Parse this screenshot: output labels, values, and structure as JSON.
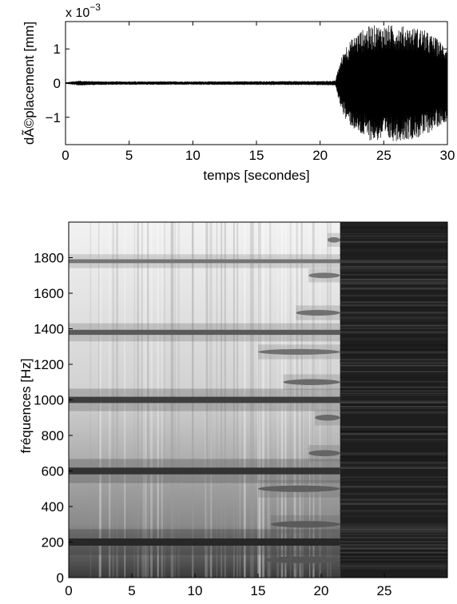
{
  "chart_data": [
    {
      "type": "line",
      "xlabel": "temps [secondes]",
      "ylabel": "dÃ©placement [mm]",
      "multiplier_base": "x 10",
      "multiplier_exponent": "−3",
      "xlim": [
        0,
        30
      ],
      "ylim": [
        -1.8,
        1.8
      ],
      "x_ticks": [
        0,
        5,
        10,
        15,
        20,
        25,
        30
      ],
      "x_tick_labels": [
        "0",
        "5",
        "10",
        "15",
        "20",
        "25",
        "30"
      ],
      "y_ticks": [
        -1,
        0,
        1
      ],
      "y_tick_labels": [
        "−1",
        "0",
        "1"
      ],
      "grid": false,
      "series": [
        {
          "envelope": [
            {
              "x": 0,
              "amp": 0.02
            },
            {
              "x": 1,
              "amp": 0.07
            },
            {
              "x": 3,
              "amp": 0.05
            },
            {
              "x": 10,
              "amp": 0.05
            },
            {
              "x": 20,
              "amp": 0.06
            },
            {
              "x": 21.2,
              "amp": 0.07
            },
            {
              "x": 21.5,
              "amp": 0.55
            },
            {
              "x": 22,
              "amp": 1.1
            },
            {
              "x": 23,
              "amp": 1.5
            },
            {
              "x": 24,
              "amp": 1.7
            },
            {
              "x": 26,
              "amp": 1.7
            },
            {
              "x": 28,
              "amp": 1.6
            },
            {
              "x": 30,
              "amp": 1.1
            }
          ],
          "color": "#000000"
        }
      ]
    },
    {
      "type": "heatmap",
      "ylabel": "fréquences [Hz]",
      "xlim": [
        0,
        30
      ],
      "ylim": [
        0,
        2000
      ],
      "x_ticks": [
        0,
        5,
        10,
        15,
        20,
        25
      ],
      "x_tick_labels": [
        "0",
        "5",
        "10",
        "15",
        "20",
        "25"
      ],
      "y_ticks": [
        0,
        200,
        400,
        600,
        800,
        1000,
        1200,
        1400,
        1600,
        1800
      ],
      "y_tick_labels": [
        "0",
        "200",
        "400",
        "600",
        "800",
        "1000",
        "1200",
        "1400",
        "1600",
        "1800"
      ],
      "colormap": "gray",
      "onset_time": 21.5,
      "harmonics": [
        {
          "freq": 200,
          "strength": 1.0,
          "x_end": 21.5
        },
        {
          "freq": 600,
          "strength": 0.9,
          "x_end": 21.5
        },
        {
          "freq": 1000,
          "strength": 0.8,
          "x_end": 21.5
        },
        {
          "freq": 1380,
          "strength": 0.55,
          "x_end": 21.5
        },
        {
          "freq": 1780,
          "strength": 0.3,
          "x_end": 21.5
        },
        {
          "freq": 100,
          "strength": 0.6,
          "x_start": 15.5
        },
        {
          "freq": 300,
          "strength": 0.55,
          "x_start": 16
        },
        {
          "freq": 500,
          "strength": 0.5,
          "x_start": 15
        },
        {
          "freq": 700,
          "strength": 0.45,
          "x_start": 19
        },
        {
          "freq": 900,
          "strength": 0.4,
          "x_start": 19.5
        },
        {
          "freq": 1100,
          "strength": 0.4,
          "x_start": 17
        },
        {
          "freq": 1270,
          "strength": 0.35,
          "x_start": 15
        },
        {
          "freq": 1490,
          "strength": 0.35,
          "x_start": 18
        },
        {
          "freq": 1700,
          "strength": 0.3,
          "x_start": 19
        },
        {
          "freq": 1900,
          "strength": 0.3,
          "x_start": 20.5
        }
      ]
    }
  ]
}
